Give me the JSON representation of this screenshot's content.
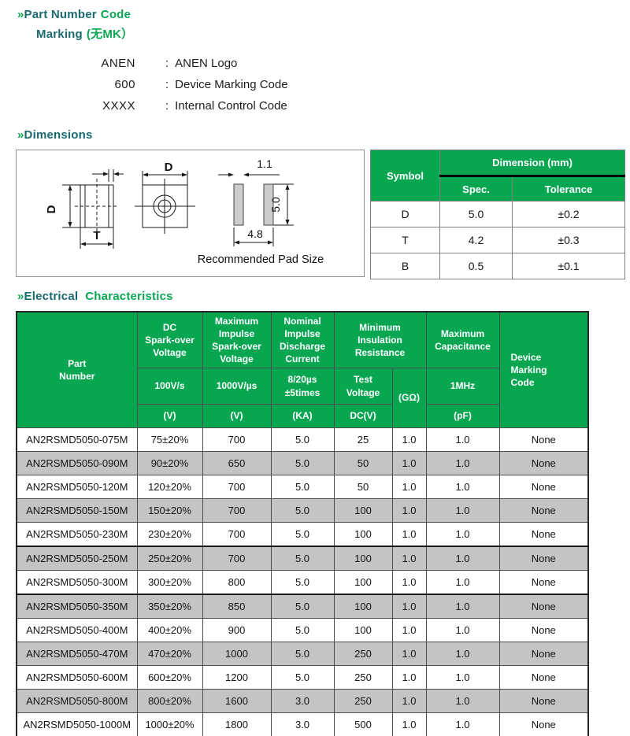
{
  "colors": {
    "green": "#09a651",
    "teal": "#1a6a71",
    "stripe_gray": "#c4c4c4"
  },
  "section_marking": {
    "bullet": "»",
    "title_teal_1": "Part Number",
    "title_green_1": "Code",
    "title_teal_2": "Marking",
    "title_green_2": "(无MK）",
    "items": [
      {
        "code": "ANEN",
        "sep": ":",
        "desc": "ANEN Logo"
      },
      {
        "code": "600",
        "sep": ":",
        "desc": "Device Marking Code"
      },
      {
        "code": "XXXX",
        "sep": ":",
        "desc": "Internal Control Code"
      }
    ]
  },
  "section_dimensions": {
    "bullet": "»",
    "title": "Dimensions",
    "figure": {
      "side_height_label": "D",
      "side_width_label": "T",
      "top_width_label": "D",
      "pad_width_label": "1.1",
      "pad_height_label": "5.0",
      "pad_span_label": "4.8",
      "caption": "Recommended Pad Size"
    },
    "table": {
      "col_symbol": "Symbol",
      "col_dimension": "Dimension (mm)",
      "col_spec": "Spec.",
      "col_tolerance": "Tolerance",
      "rows": [
        {
          "symbol": "D",
          "spec": "5.0",
          "tolerance": "±0.2"
        },
        {
          "symbol": "T",
          "spec": "4.2",
          "tolerance": "±0.3"
        },
        {
          "symbol": "B",
          "spec": "0.5",
          "tolerance": "±0.1"
        }
      ]
    }
  },
  "section_electrical": {
    "bullet": "»",
    "title_teal": "Electrical",
    "title_green": "Characteristics",
    "header": {
      "part_number": "Part\nNumber",
      "dc_group": "DC\nSpark-over\nVoltage",
      "impulse_group": "Maximum\nImpulse\nSpark-over\nVoltage",
      "discharge_group": "Nominal\nImpulse\nDischarge\nCurrent",
      "insulation_group": "Minimum\nInsulation\nResistance",
      "capacitance_group": "Maximum\nCapacitance",
      "marking_group": "Device\nMarking\nCode",
      "dc_rate": "100V/s",
      "impulse_rate": "1000V/µs",
      "discharge_rate": "8/20µs\n±5times",
      "test_voltage": "Test\nVoltage",
      "gohm": "(GΩ)",
      "freq": "1MHz",
      "dc_unit": "(V)",
      "impulse_unit": "(V)",
      "discharge_unit": "(KA)",
      "test_unit": "DC(V)",
      "cap_unit": "(pF)"
    },
    "rows": [
      {
        "part": "AN2RSMD5050-075M",
        "dc_spark": "75±20%",
        "max_impulse": "700",
        "discharge": "5.0",
        "test_voltage": "25",
        "insulation": "1.0",
        "capacitance": "1.0",
        "marking": "None"
      },
      {
        "part": "AN2RSMD5050-090M",
        "dc_spark": "90±20%",
        "max_impulse": "650",
        "discharge": "5.0",
        "test_voltage": "50",
        "insulation": "1.0",
        "capacitance": "1.0",
        "marking": "None"
      },
      {
        "part": "AN2RSMD5050-120M",
        "dc_spark": "120±20%",
        "max_impulse": "700",
        "discharge": "5.0",
        "test_voltage": "50",
        "insulation": "1.0",
        "capacitance": "1.0",
        "marking": "None"
      },
      {
        "part": "AN2RSMD5050-150M",
        "dc_spark": "150±20%",
        "max_impulse": "700",
        "discharge": "5.0",
        "test_voltage": "100",
        "insulation": "1.0",
        "capacitance": "1.0",
        "marking": "None"
      },
      {
        "part": "AN2RSMD5050-230M",
        "dc_spark": "230±20%",
        "max_impulse": "700",
        "discharge": "5.0",
        "test_voltage": "100",
        "insulation": "1.0",
        "capacitance": "1.0",
        "marking": "None",
        "thick_below": true
      },
      {
        "part": "AN2RSMD5050-250M",
        "dc_spark": "250±20%",
        "max_impulse": "700",
        "discharge": "5.0",
        "test_voltage": "100",
        "insulation": "1.0",
        "capacitance": "1.0",
        "marking": "None"
      },
      {
        "part": "AN2RSMD5050-300M",
        "dc_spark": "300±20%",
        "max_impulse": "800",
        "discharge": "5.0",
        "test_voltage": "100",
        "insulation": "1.0",
        "capacitance": "1.0",
        "marking": "None",
        "thick_below": true
      },
      {
        "part": "AN2RSMD5050-350M",
        "dc_spark": "350±20%",
        "max_impulse": "850",
        "discharge": "5.0",
        "test_voltage": "100",
        "insulation": "1.0",
        "capacitance": "1.0",
        "marking": "None"
      },
      {
        "part": "AN2RSMD5050-400M",
        "dc_spark": "400±20%",
        "max_impulse": "900",
        "discharge": "5.0",
        "test_voltage": "100",
        "insulation": "1.0",
        "capacitance": "1.0",
        "marking": "None"
      },
      {
        "part": "AN2RSMD5050-470M",
        "dc_spark": "470±20%",
        "max_impulse": "1000",
        "discharge": "5.0",
        "test_voltage": "250",
        "insulation": "1.0",
        "capacitance": "1.0",
        "marking": "None"
      },
      {
        "part": "AN2RSMD5050-600M",
        "dc_spark": "600±20%",
        "max_impulse": "1200",
        "discharge": "5.0",
        "test_voltage": "250",
        "insulation": "1.0",
        "capacitance": "1.0",
        "marking": "None"
      },
      {
        "part": "AN2RSMD5050-800M",
        "dc_spark": "800±20%",
        "max_impulse": "1600",
        "discharge": "3.0",
        "test_voltage": "250",
        "insulation": "1.0",
        "capacitance": "1.0",
        "marking": "None"
      },
      {
        "part": "AN2RSMD5050-1000M",
        "dc_spark": "1000±20%",
        "max_impulse": "1800",
        "discharge": "3.0",
        "test_voltage": "500",
        "insulation": "1.0",
        "capacitance": "1.0",
        "marking": "None"
      }
    ]
  }
}
